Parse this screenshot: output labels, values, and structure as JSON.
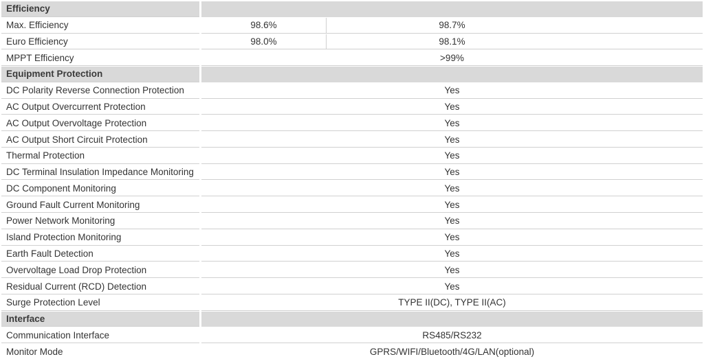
{
  "sections": [
    {
      "title": "Efficiency",
      "rows": [
        {
          "label": "Max. Efficiency",
          "values": [
            "98.6%",
            "98.7%"
          ]
        },
        {
          "label": "Euro Efficiency",
          "values": [
            "98.0%",
            "98.1%"
          ]
        },
        {
          "label": "MPPT Efficiency",
          "values": [
            ">99%"
          ]
        }
      ]
    },
    {
      "title": "Equipment Protection",
      "rows": [
        {
          "label": "DC Polarity Reverse Connection Protection",
          "values": [
            "Yes"
          ]
        },
        {
          "label": "AC Output Overcurrent Protection",
          "values": [
            "Yes"
          ]
        },
        {
          "label": "AC Output Overvoltage Protection",
          "values": [
            "Yes"
          ]
        },
        {
          "label": "AC Output Short Circuit Protection",
          "values": [
            "Yes"
          ]
        },
        {
          "label": "Thermal Protection",
          "values": [
            "Yes"
          ]
        },
        {
          "label": "DC Terminal Insulation Impedance Monitoring",
          "values": [
            "Yes"
          ]
        },
        {
          "label": "DC Component Monitoring",
          "values": [
            "Yes"
          ]
        },
        {
          "label": "Ground Fault Current Monitoring",
          "values": [
            "Yes"
          ]
        },
        {
          "label": "Power Network Monitoring",
          "values": [
            "Yes"
          ]
        },
        {
          "label": "Island Protection Monitoring",
          "values": [
            "Yes"
          ]
        },
        {
          "label": "Earth Fault Detection",
          "values": [
            "Yes"
          ]
        },
        {
          "label": "Overvoltage Load Drop Protection",
          "values": [
            "Yes"
          ]
        },
        {
          "label": "Residual Current (RCD) Detection",
          "values": [
            "Yes"
          ]
        },
        {
          "label": "Surge Protection Level",
          "values": [
            "TYPE II(DC), TYPE II(AC)"
          ]
        }
      ]
    },
    {
      "title": "Interface",
      "rows": [
        {
          "label": "Communication Interface",
          "values": [
            "RS485/RS232"
          ]
        },
        {
          "label": "Monitor Mode",
          "values": [
            "GPRS/WIFI/Bluetooth/4G/LAN(optional)"
          ]
        }
      ]
    }
  ]
}
